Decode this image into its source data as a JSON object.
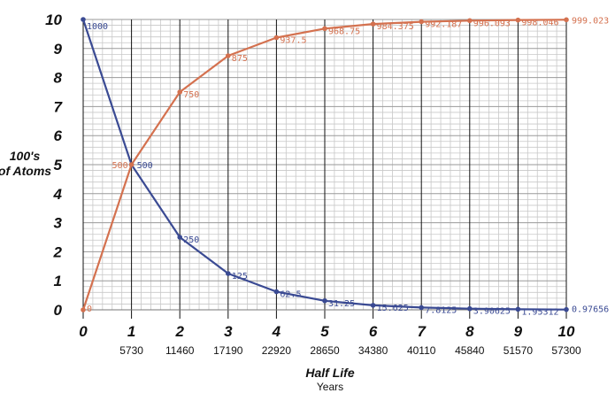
{
  "chart_data": {
    "type": "line",
    "xlabel": "Half Life",
    "xlabel_sub": "Years",
    "ylabel_line1": "100's",
    "ylabel_line2": "of Atoms",
    "xlim": [
      0,
      10
    ],
    "ylim": [
      0,
      10
    ],
    "x": [
      0,
      1,
      2,
      3,
      4,
      5,
      6,
      7,
      8,
      9,
      10
    ],
    "x_tick_labels": [
      "0",
      "1",
      "2",
      "3",
      "4",
      "5",
      "6",
      "7",
      "8",
      "9",
      "10"
    ],
    "x_year_labels": [
      "",
      "5730",
      "11460",
      "17190",
      "22920",
      "28650",
      "34380",
      "40110",
      "45840",
      "51570",
      "57300"
    ],
    "y_tick_labels": [
      "0",
      "1",
      "2",
      "3",
      "4",
      "5",
      "6",
      "7",
      "8",
      "9",
      "10"
    ],
    "grid": true,
    "series": [
      {
        "color": "#3a4a93",
        "values": [
          10,
          5,
          2.5,
          1.25,
          0.625,
          0.3125,
          0.15625,
          0.078125,
          0.0390625,
          0.0195312,
          0.0097656
        ],
        "labels": [
          "1000",
          "500",
          "250",
          "125",
          "62.5",
          "31.25",
          "15.625",
          "7.8125",
          "3.90625",
          "1.95312",
          "0.97656"
        ]
      },
      {
        "color": "#d4714f",
        "values": [
          0,
          5,
          7.5,
          8.75,
          9.375,
          9.6875,
          9.84375,
          9.92187,
          9.96093,
          9.98046,
          9.99023
        ],
        "labels": [
          "0",
          "500",
          "750",
          "875",
          "937.5",
          "968.75",
          "984.375",
          "992.187",
          "996.093",
          "998.046",
          "999.023"
        ]
      }
    ]
  }
}
